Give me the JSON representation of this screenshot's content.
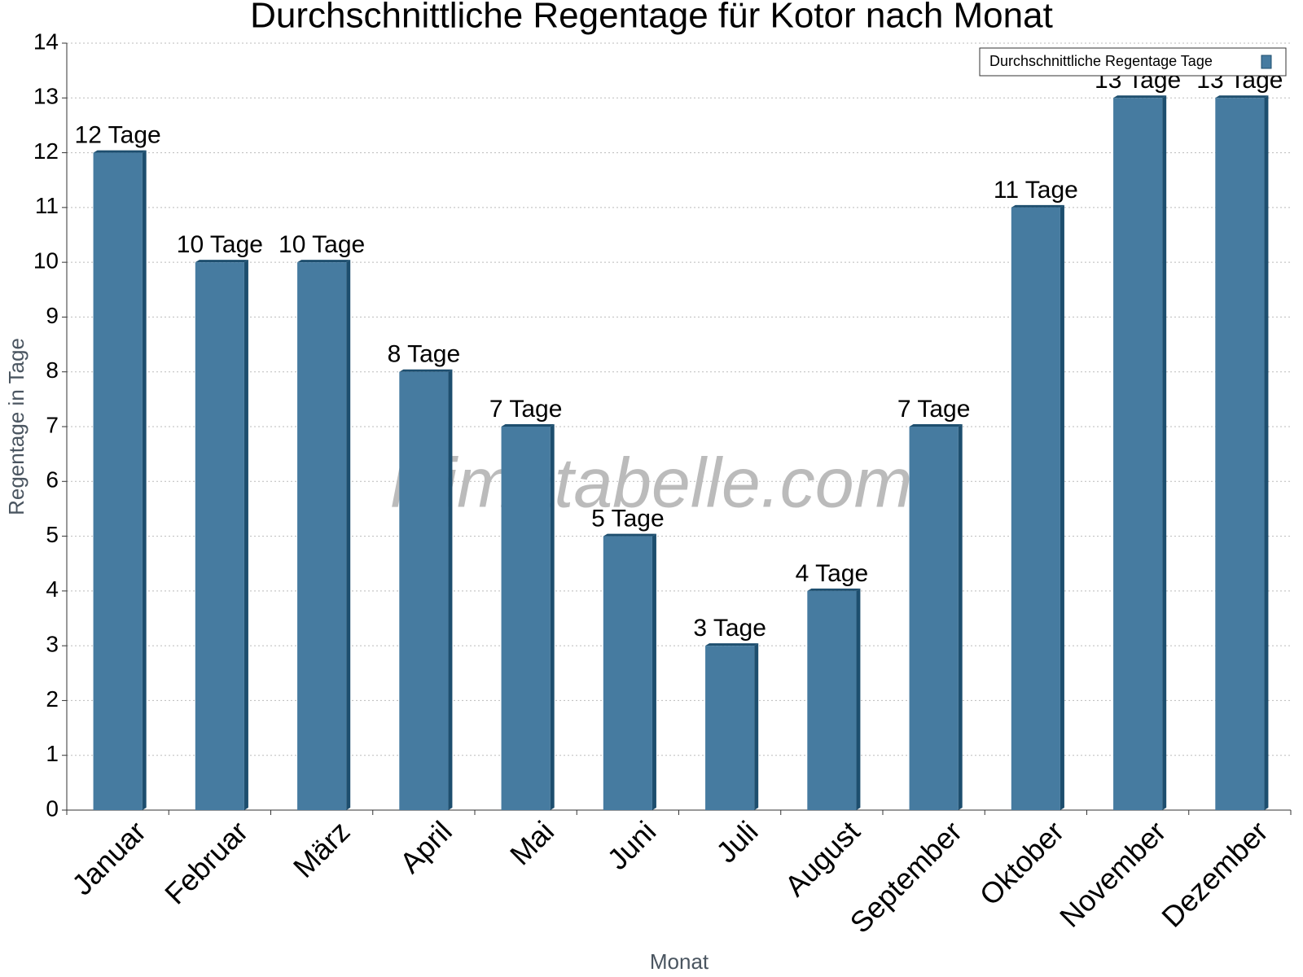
{
  "chart_data": {
    "type": "bar",
    "title": "Durchschnittliche Regentage für Kotor nach Monat",
    "x_label": "Monat",
    "y_label": "Regentage in Tage",
    "watermark": "klimatabelle.com",
    "categories": [
      "Januar",
      "Februar",
      "März",
      "April",
      "Mai",
      "Juni",
      "Juli",
      "August",
      "September",
      "Oktober",
      "November",
      "Dezember"
    ],
    "series": [
      {
        "name": "Durchschnittliche Regentage Tage",
        "color": "#467ba0",
        "values": [
          12,
          10,
          10,
          8,
          7,
          5,
          3,
          4,
          7,
          11,
          13,
          13
        ],
        "value_labels": [
          "12 Tage",
          "10 Tage",
          "10 Tage",
          "8 Tage",
          "7 Tage",
          "5 Tage",
          "3 Tage",
          "4 Tage",
          "7 Tage",
          "11 Tage",
          "13 Tage",
          "13 Tage"
        ]
      }
    ],
    "ylim": [
      0,
      14
    ],
    "yticks": [
      0,
      1,
      2,
      3,
      4,
      5,
      6,
      7,
      8,
      9,
      10,
      11,
      12,
      13,
      14
    ],
    "grid": true,
    "legend": "top-right"
  }
}
